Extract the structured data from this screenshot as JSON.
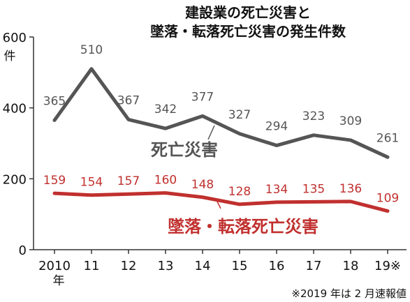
{
  "chart_data": {
    "type": "line",
    "title_lines": [
      "建設業の死亡災害と",
      "墜落・転落死亡災害の発生件数"
    ],
    "y_unit_label": "件",
    "y_ticks": [
      0,
      200,
      400,
      600
    ],
    "ylim": [
      0,
      600
    ],
    "x_labels": [
      "2010",
      "11",
      "12",
      "13",
      "14",
      "15",
      "16",
      "17",
      "18",
      "19※"
    ],
    "x_first_suffix": "年",
    "series": [
      {
        "name": "死亡災害",
        "color": "#555555",
        "values": [
          365,
          510,
          367,
          342,
          377,
          327,
          294,
          323,
          309,
          261
        ]
      },
      {
        "name": "墜落・転落死亡災害",
        "color": "#c0302e",
        "values": [
          159,
          154,
          157,
          160,
          148,
          128,
          134,
          135,
          136,
          109
        ]
      }
    ],
    "footnote": "※2019 年は 2 月速報値"
  }
}
